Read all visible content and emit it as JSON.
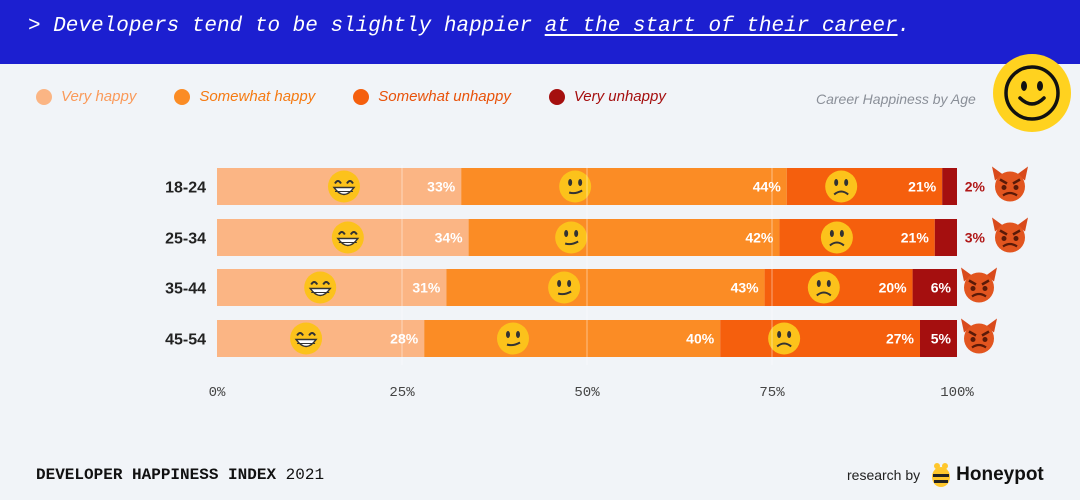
{
  "banner": {
    "prefix": "> Developers tend to be slightly happier ",
    "underlined": "at the start of their career",
    "suffix": "."
  },
  "legend": [
    {
      "label": "Very happy",
      "color": "#fbb584"
    },
    {
      "label": "Somewhat happy",
      "color": "#fb8c25"
    },
    {
      "label": "Somewhat unhappy",
      "color": "#f55f0d"
    },
    {
      "label": "Very unhappy",
      "color": "#a50f0f"
    }
  ],
  "chart_caption": "Career Happiness by Age",
  "chart_data": {
    "type": "bar",
    "orientation": "horizontal",
    "stacked": true,
    "title": "Career Happiness by Age",
    "categories": [
      "18-24",
      "25-34",
      "35-44",
      "45-54"
    ],
    "series": [
      {
        "name": "Very happy",
        "values": [
          33,
          34,
          31,
          28
        ],
        "color": "#fbb584",
        "icon": "grinning-face-icon"
      },
      {
        "name": "Somewhat happy",
        "values": [
          44,
          42,
          43,
          40
        ],
        "color": "#fb8c25",
        "icon": "slightly-smiling-face-icon"
      },
      {
        "name": "Somewhat unhappy",
        "values": [
          21,
          21,
          20,
          27
        ],
        "color": "#f55f0d",
        "icon": "frowning-face-icon"
      },
      {
        "name": "Very unhappy",
        "values": [
          2,
          3,
          6,
          5
        ],
        "color": "#a50f0f",
        "icon": "angry-devil-icon"
      }
    ],
    "value_labels": [
      [
        "33%",
        "44%",
        "21%",
        "2%"
      ],
      [
        "34%",
        "42%",
        "21%",
        "3%"
      ],
      [
        "31%",
        "43%",
        "20%",
        "6%"
      ],
      [
        "28%",
        "40%",
        "27%",
        "5%"
      ]
    ],
    "xlim": [
      0,
      100
    ],
    "xticks": [
      "0%",
      "25%",
      "50%",
      "75%",
      "100%"
    ],
    "grid": true,
    "legend_position": "top-left"
  },
  "footer": {
    "title_bold": "DEVELOPER HAPPINESS INDEX",
    "year": "2021",
    "research_by": "research by",
    "brand": "Honeypot"
  }
}
